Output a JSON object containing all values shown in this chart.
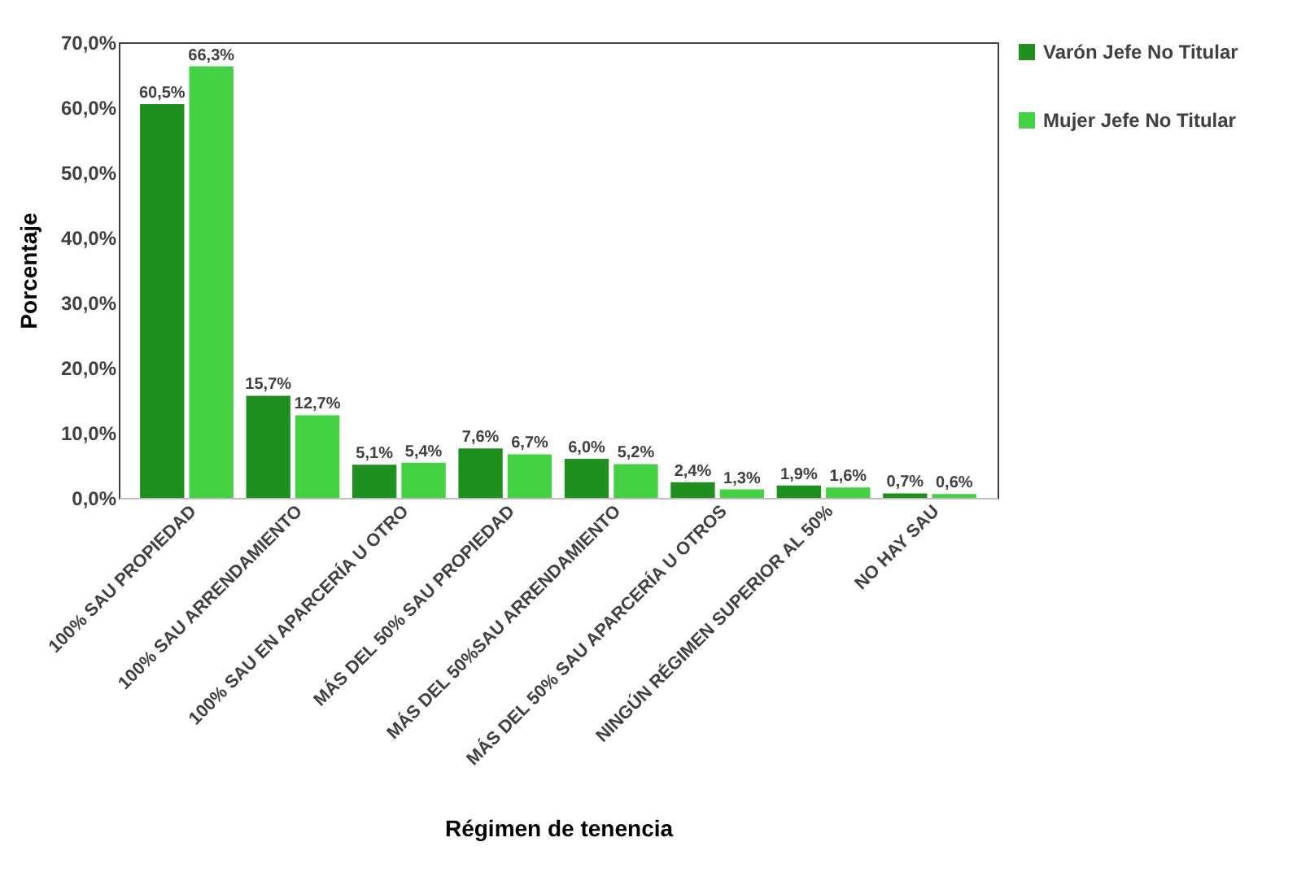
{
  "chart_data": {
    "type": "bar",
    "xlabel": "Régimen de tenencia",
    "ylabel": "Porcentaje",
    "categories": [
      "100% SAU PROPIEDAD",
      "100% SAU ARRENDAMIENTO",
      "100% SAU EN APARCERÍA U OTRO",
      "MÁS DEL 50% SAU PROPIEDAD",
      "MÁS DEL 50%SAU ARRENDAMIENTO",
      "MÁS DEL 50% SAU APARCERÍA U OTROS",
      "NINGÚN RÉGIMEN SUPERIOR AL 50%",
      "NO HAY SAU"
    ],
    "series": [
      {
        "name": "Varón Jefe No Titular",
        "color": "#1f8f1f",
        "values": [
          60.5,
          15.7,
          5.1,
          7.6,
          6.0,
          2.4,
          1.9,
          0.7
        ],
        "value_labels": [
          "60,5%",
          "15,7%",
          "5,1%",
          "7,6%",
          "6,0%",
          "2,4%",
          "1,9%",
          "0,7%"
        ]
      },
      {
        "name": "Mujer Jefe No Titular",
        "color": "#44d144",
        "values": [
          66.3,
          12.7,
          5.4,
          6.7,
          5.2,
          1.3,
          1.6,
          0.6
        ],
        "value_labels": [
          "66,3%",
          "12,7%",
          "5,4%",
          "6,7%",
          "5,2%",
          "1,3%",
          "1,6%",
          "0,6%"
        ]
      }
    ],
    "ylim": [
      0,
      70
    ],
    "yticks": [
      {
        "value": 0,
        "label": "0,0%"
      },
      {
        "value": 10,
        "label": "10,0%"
      },
      {
        "value": 20,
        "label": "20,0%"
      },
      {
        "value": 30,
        "label": "30,0%"
      },
      {
        "value": 40,
        "label": "40,0%"
      },
      {
        "value": 50,
        "label": "50,0%"
      },
      {
        "value": 60,
        "label": "60,0%"
      },
      {
        "value": 70,
        "label": "70,0%"
      }
    ],
    "legend": "right",
    "grid": false
  }
}
